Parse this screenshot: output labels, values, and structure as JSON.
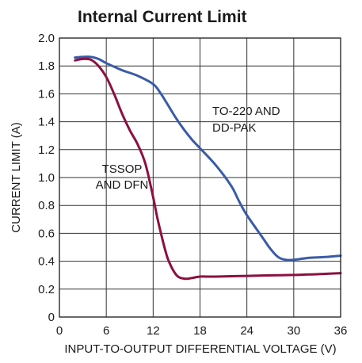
{
  "chart_data": {
    "type": "line",
    "title": "Internal Current Limit",
    "xlabel": "INPUT-TO-OUTPUT DIFFERENTIAL VOLTAGE (V)",
    "ylabel": "CURRENT LIMIT (A)",
    "xlim": [
      0,
      36
    ],
    "ylim": [
      0,
      2.0
    ],
    "x_ticks": [
      "0",
      "6",
      "12",
      "18",
      "24",
      "30",
      "36"
    ],
    "y_ticks": [
      "0",
      "0.2",
      "0.4",
      "0.6",
      "0.8",
      "1.0",
      "1.2",
      "1.4",
      "1.6",
      "1.8",
      "2.0"
    ],
    "grid": true,
    "series": [
      {
        "name": "TO-220 AND DD-PAK",
        "color": "#3a5ba8",
        "x": [
          2,
          3,
          4,
          5,
          6,
          8,
          10,
          12,
          13,
          14,
          15,
          16,
          17,
          18,
          20,
          22,
          23,
          24,
          26,
          27,
          28,
          29,
          30,
          32,
          34,
          36
        ],
        "y": [
          1.86,
          1.865,
          1.865,
          1.85,
          1.82,
          1.77,
          1.73,
          1.67,
          1.6,
          1.51,
          1.42,
          1.34,
          1.27,
          1.21,
          1.09,
          0.94,
          0.83,
          0.73,
          0.57,
          0.49,
          0.43,
          0.41,
          0.41,
          0.425,
          0.43,
          0.44
        ]
      },
      {
        "name": "TSSOP AND DFN",
        "color": "#8c1040",
        "x": [
          2,
          3,
          4,
          5,
          6,
          7,
          8,
          9,
          10,
          11,
          12,
          12.5,
          13,
          13.5,
          14,
          15,
          16,
          17,
          18,
          20,
          24,
          28,
          32,
          36
        ],
        "y": [
          1.84,
          1.85,
          1.845,
          1.8,
          1.72,
          1.6,
          1.46,
          1.34,
          1.24,
          1.1,
          0.86,
          0.72,
          0.6,
          0.49,
          0.4,
          0.3,
          0.275,
          0.28,
          0.29,
          0.29,
          0.295,
          0.3,
          0.305,
          0.315
        ]
      }
    ],
    "annotations": [
      {
        "lines": [
          "TO-220 AND",
          "DD-PAK"
        ],
        "series": 0
      },
      {
        "lines": [
          "TSSOP",
          "AND DFN"
        ],
        "series": 1
      }
    ]
  }
}
